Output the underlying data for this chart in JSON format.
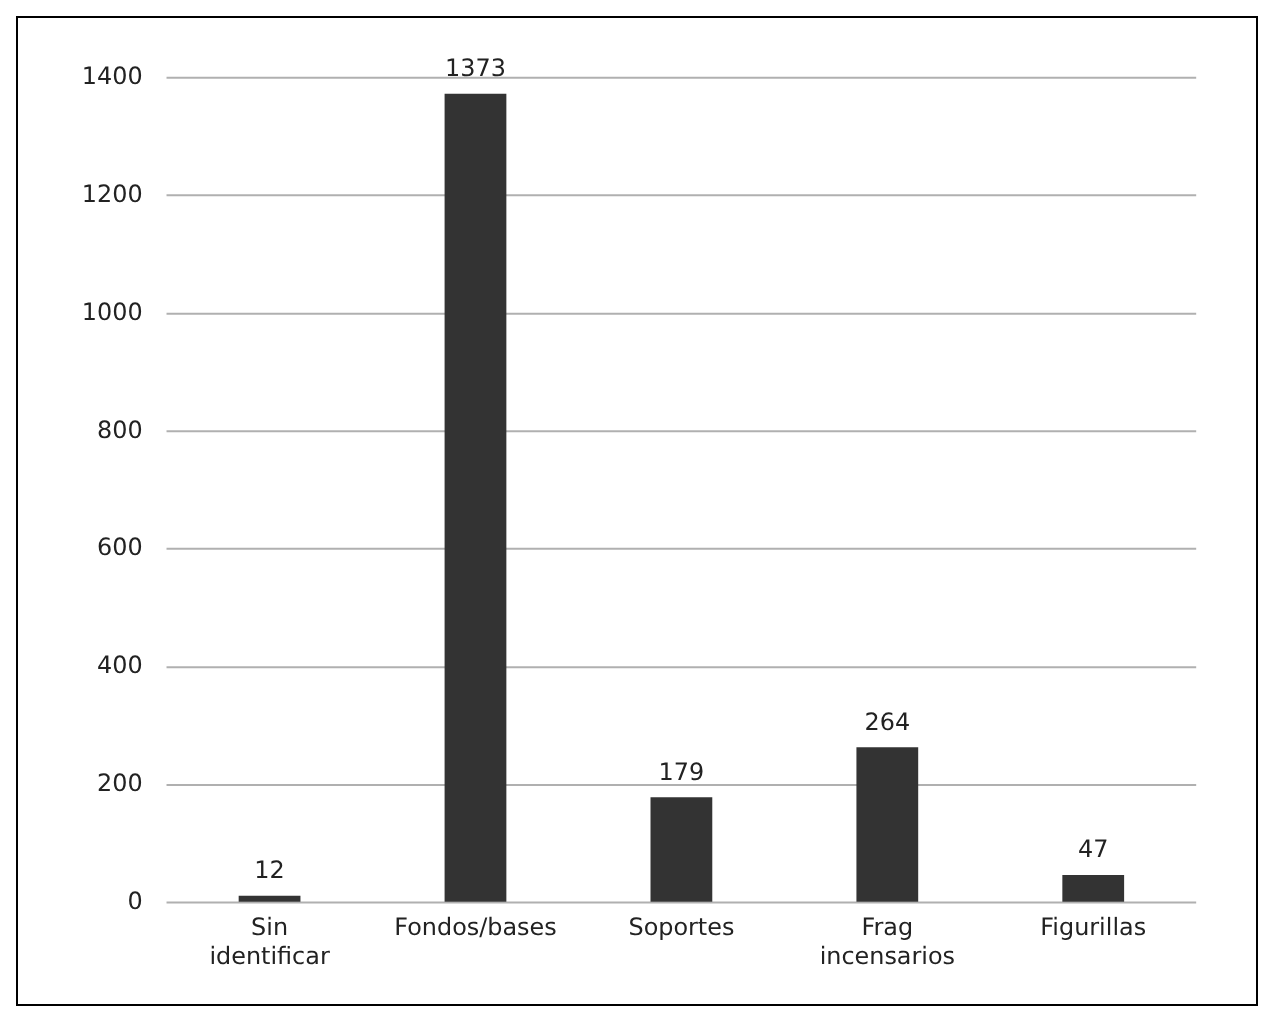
{
  "chart_data": {
    "type": "bar",
    "categories": [
      "Sin identificar",
      "Fondos/bases",
      "Soportes",
      "Frag incensarios",
      "Figurillas"
    ],
    "values": [
      12,
      1373,
      179,
      264,
      47
    ],
    "color": "#333333",
    "ylim": [
      0,
      1400
    ],
    "yticks": [
      0,
      200,
      400,
      600,
      800,
      1000,
      1200,
      1400
    ],
    "grid": "y",
    "data_labels": true,
    "legend": false
  }
}
